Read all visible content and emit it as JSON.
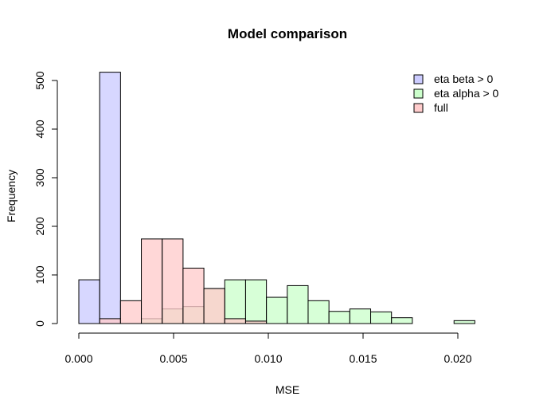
{
  "chart_data": {
    "type": "histogram",
    "title": "Model comparison",
    "xlabel": "MSE",
    "ylabel": "Frequency",
    "xlim": [
      0,
      0.021
    ],
    "ylim": [
      0,
      520
    ],
    "x_ticks": [
      0,
      0.005,
      0.01,
      0.015,
      0.02
    ],
    "x_tick_labels": [
      "0.000",
      "0.005",
      "0.010",
      "0.015",
      "0.020"
    ],
    "y_ticks": [
      0,
      100,
      200,
      300,
      400,
      500
    ],
    "y_tick_labels": [
      "0",
      "100",
      "200",
      "300",
      "400",
      "500"
    ],
    "bin_width": 0.0011,
    "legend_position": "top-right",
    "series": [
      {
        "name": "eta beta > 0",
        "color": "#CCCCFF",
        "bins": [
          [
            0,
            90
          ],
          [
            0.0011,
            517
          ],
          [
            0.0022,
            0
          ]
        ]
      },
      {
        "name": "eta alpha > 0",
        "color": "#CCFFCC",
        "bins": [
          [
            0.0033,
            10
          ],
          [
            0.0044,
            30
          ],
          [
            0.0055,
            35
          ],
          [
            0.0066,
            72
          ],
          [
            0.0077,
            90
          ],
          [
            0.0088,
            90
          ],
          [
            0.0099,
            54
          ],
          [
            0.011,
            78
          ],
          [
            0.0121,
            47
          ],
          [
            0.0132,
            25
          ],
          [
            0.0143,
            30
          ],
          [
            0.0154,
            24
          ],
          [
            0.0165,
            12
          ],
          [
            0.0176,
            0
          ],
          [
            0.0187,
            0
          ],
          [
            0.0198,
            6
          ]
        ]
      },
      {
        "name": "full",
        "color": "#FFCCCC",
        "bins": [
          [
            0.0011,
            10
          ],
          [
            0.0022,
            47
          ],
          [
            0.0033,
            174
          ],
          [
            0.0044,
            174
          ],
          [
            0.0055,
            114
          ],
          [
            0.0066,
            72
          ],
          [
            0.0077,
            10
          ],
          [
            0.0088,
            5
          ]
        ]
      }
    ]
  }
}
